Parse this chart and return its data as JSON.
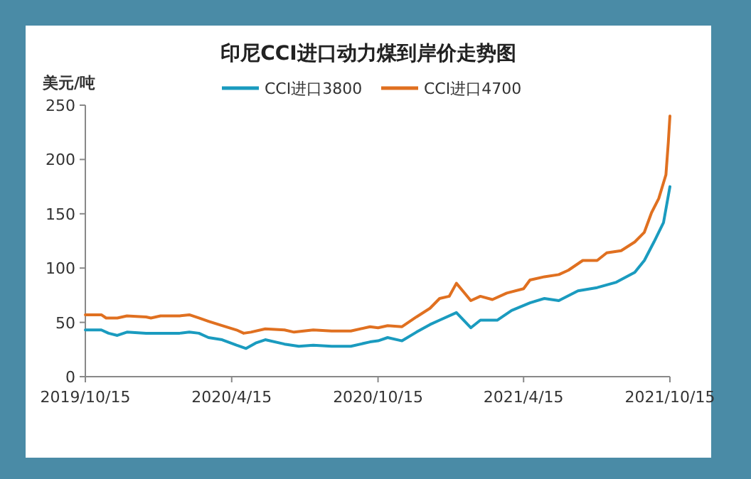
{
  "chart_data": {
    "type": "line",
    "title": "印尼CCI进口动力煤到岸价走势图",
    "ylabel": "美元/吨",
    "legend": "top",
    "xlim": [
      "2019-10-15",
      "2021-10-15"
    ],
    "ylim": [
      0,
      250
    ],
    "yticks": [
      0,
      50,
      100,
      150,
      200,
      250
    ],
    "xticks": [
      {
        "value": "2019-10-15",
        "label": "2019/10/15"
      },
      {
        "value": "2020-04-15",
        "label": "2020/4/15"
      },
      {
        "value": "2020-10-15",
        "label": "2020/10/15"
      },
      {
        "value": "2021-04-15",
        "label": "2021/4/15"
      },
      {
        "value": "2021-10-15",
        "label": "2021/10/15"
      }
    ],
    "series": [
      {
        "name": "CCI进口3800",
        "color": "#1a9bbf",
        "x": [
          "2019-10-15",
          "2019-11-04",
          "2019-11-13",
          "2019-11-24",
          "2019-12-06",
          "2019-12-30",
          "2020-01-17",
          "2020-02-10",
          "2020-02-22",
          "2020-03-05",
          "2020-03-17",
          "2020-04-03",
          "2020-04-21",
          "2020-05-03",
          "2020-05-15",
          "2020-05-27",
          "2020-06-20",
          "2020-07-08",
          "2020-07-26",
          "2020-08-18",
          "2020-09-11",
          "2020-10-05",
          "2020-10-15",
          "2020-10-27",
          "2020-11-14",
          "2020-12-02",
          "2020-12-19",
          "2020-12-31",
          "2021-01-21",
          "2021-02-08",
          "2021-02-20",
          "2021-03-13",
          "2021-03-31",
          "2021-04-23",
          "2021-05-11",
          "2021-05-29",
          "2021-06-22",
          "2021-07-16",
          "2021-08-09",
          "2021-09-01",
          "2021-09-13",
          "2021-09-25",
          "2021-10-07",
          "2021-10-15"
        ],
        "values": [
          43,
          43,
          40,
          38,
          41,
          40,
          40,
          40,
          41,
          40,
          36,
          34,
          29,
          26,
          31,
          34,
          30,
          28,
          29,
          28,
          28,
          32,
          33,
          36,
          33,
          41,
          48,
          52,
          59,
          45,
          52,
          52,
          61,
          68,
          72,
          70,
          79,
          82,
          87,
          96,
          107,
          124,
          142,
          175
        ]
      },
      {
        "name": "CCI进口4700",
        "color": "#e07020",
        "x": [
          "2019-10-15",
          "2019-11-04",
          "2019-11-10",
          "2019-11-24",
          "2019-12-06",
          "2019-12-30",
          "2020-01-05",
          "2020-01-17",
          "2020-02-10",
          "2020-02-22",
          "2020-03-05",
          "2020-03-17",
          "2020-04-03",
          "2020-04-21",
          "2020-04-30",
          "2020-05-09",
          "2020-05-27",
          "2020-06-20",
          "2020-07-02",
          "2020-07-26",
          "2020-08-18",
          "2020-09-11",
          "2020-10-05",
          "2020-10-15",
          "2020-10-27",
          "2020-11-14",
          "2020-12-02",
          "2020-12-19",
          "2020-12-31",
          "2021-01-12",
          "2021-01-21",
          "2021-01-30",
          "2021-02-08",
          "2021-02-20",
          "2021-03-07",
          "2021-03-25",
          "2021-04-15",
          "2021-04-23",
          "2021-05-11",
          "2021-05-29",
          "2021-06-10",
          "2021-06-28",
          "2021-07-16",
          "2021-07-28",
          "2021-08-15",
          "2021-09-01",
          "2021-09-13",
          "2021-09-22",
          "2021-10-01",
          "2021-10-10",
          "2021-10-13",
          "2021-10-15"
        ],
        "values": [
          57,
          57,
          54,
          54,
          56,
          55,
          54,
          56,
          56,
          57,
          54,
          51,
          47,
          43,
          40,
          41,
          44,
          43,
          41,
          43,
          42,
          42,
          46,
          45,
          47,
          46,
          55,
          63,
          72,
          74,
          86,
          78,
          70,
          74,
          71,
          77,
          81,
          89,
          92,
          94,
          98,
          107,
          107,
          114,
          116,
          124,
          133,
          151,
          164,
          186,
          216,
          240
        ]
      }
    ]
  }
}
